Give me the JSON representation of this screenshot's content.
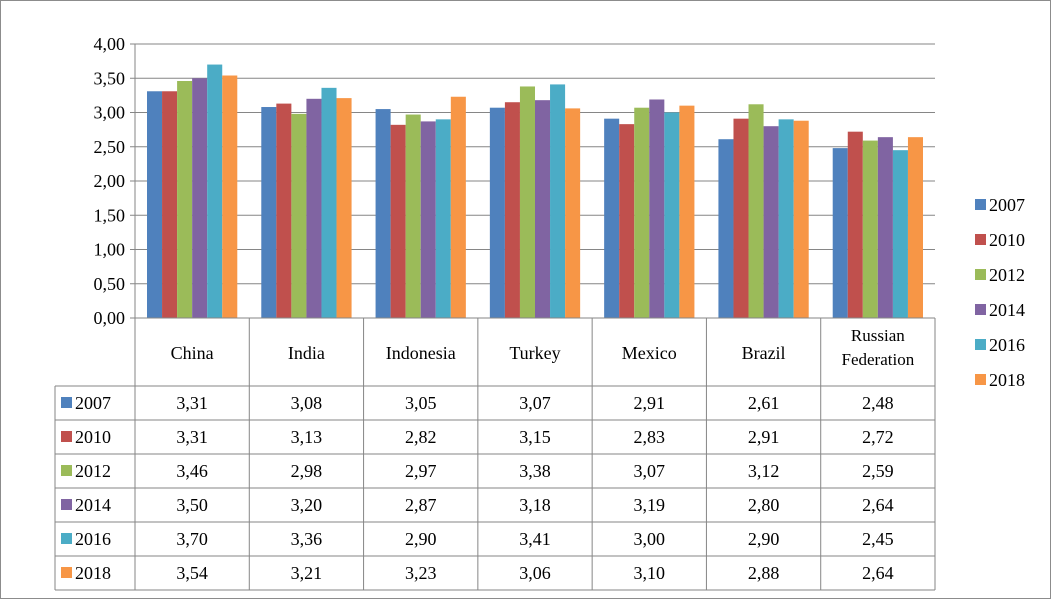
{
  "chart_data": {
    "type": "bar",
    "categories": [
      "China",
      "India",
      "Indonesia",
      "Turkey",
      "Mexico",
      "Brazil",
      "Russian Federation"
    ],
    "category_lines": [
      [
        "China"
      ],
      [
        "India"
      ],
      [
        "Indonesia"
      ],
      [
        "Turkey"
      ],
      [
        "Mexico"
      ],
      [
        "Brazil"
      ],
      [
        "Russian",
        "Federation"
      ]
    ],
    "series": [
      {
        "name": "2007",
        "color": "#4f81bd",
        "values": [
          3.31,
          3.08,
          3.05,
          3.07,
          2.91,
          2.61,
          2.48
        ],
        "labels": [
          "3,31",
          "3,08",
          "3,05",
          "3,07",
          "2,91",
          "2,61",
          "2,48"
        ]
      },
      {
        "name": "2010",
        "color": "#c0504d",
        "values": [
          3.31,
          3.13,
          2.82,
          3.15,
          2.83,
          2.91,
          2.72
        ],
        "labels": [
          "3,31",
          "3,13",
          "2,82",
          "3,15",
          "2,83",
          "2,91",
          "2,72"
        ]
      },
      {
        "name": "2012",
        "color": "#9bbb59",
        "values": [
          3.46,
          2.98,
          2.97,
          3.38,
          3.07,
          3.12,
          2.59
        ],
        "labels": [
          "3,46",
          "2,98",
          "2,97",
          "3,38",
          "3,07",
          "3,12",
          "2,59"
        ]
      },
      {
        "name": "2014",
        "color": "#8064a2",
        "values": [
          3.5,
          3.2,
          2.87,
          3.18,
          3.19,
          2.8,
          2.64
        ],
        "labels": [
          "3,50",
          "3,20",
          "2,87",
          "3,18",
          "3,19",
          "2,80",
          "2,64"
        ]
      },
      {
        "name": "2016",
        "color": "#4bacc6",
        "values": [
          3.7,
          3.36,
          2.9,
          3.41,
          3.0,
          2.9,
          2.45
        ],
        "labels": [
          "3,70",
          "3,36",
          "2,90",
          "3,41",
          "3,00",
          "2,90",
          "2,45"
        ]
      },
      {
        "name": "2018",
        "color": "#f79646",
        "values": [
          3.54,
          3.21,
          3.23,
          3.06,
          3.1,
          2.88,
          2.64
        ],
        "labels": [
          "3,54",
          "3,21",
          "3,23",
          "3,06",
          "3,10",
          "2,88",
          "2,64"
        ]
      }
    ],
    "ylim": [
      0,
      4
    ],
    "yticks": [
      0,
      0.5,
      1,
      1.5,
      2,
      2.5,
      3,
      3.5,
      4
    ],
    "ytick_labels": [
      "0,00",
      "0,50",
      "1,00",
      "1,50",
      "2,00",
      "2,50",
      "3,00",
      "3,50",
      "4,00"
    ],
    "grid": true,
    "legend_position": "right",
    "data_table": true,
    "title": "",
    "xlabel": "",
    "ylabel": ""
  }
}
